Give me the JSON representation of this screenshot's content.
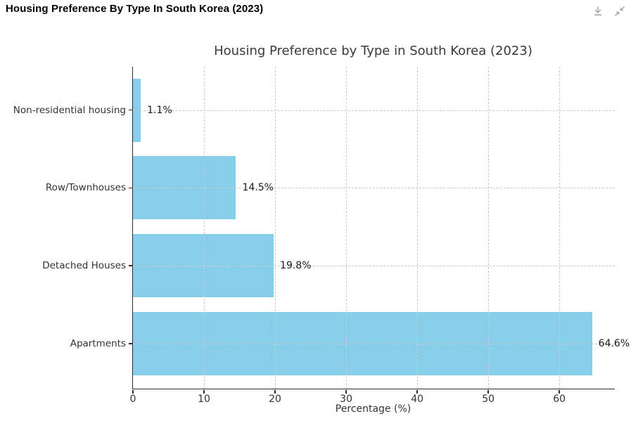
{
  "window": {
    "title": "Housing Preference By Type In South Korea (2023)",
    "actions": [
      {
        "name": "download-icon",
        "label": "Download"
      },
      {
        "name": "collapse-icon",
        "label": "Collapse"
      }
    ],
    "icon_color": "#a8a8a8"
  },
  "chart_data": {
    "type": "bar",
    "orientation": "horizontal",
    "title": "Housing Preference by Type in South Korea (2023)",
    "categories": [
      "Non-residential housing",
      "Row/Townhouses",
      "Detached Houses",
      "Apartments"
    ],
    "values": [
      1.1,
      14.5,
      19.8,
      64.6
    ],
    "value_labels": [
      "1.1%",
      "14.5%",
      "19.8%",
      "64.6%"
    ],
    "xlabel": "Percentage (%)",
    "ylabel": "",
    "xticks": [
      0,
      10,
      20,
      30,
      40,
      50,
      60
    ],
    "xlim": [
      0,
      67.8
    ],
    "grid": true,
    "legend": false,
    "bar_color": "#87CEEB",
    "grid_color": "#cbcbcb",
    "axis_color": "#2f2f2f",
    "title_color": "#3a3a3a",
    "tick_label_color": "#333333",
    "value_label_color": "#1a1a1a"
  }
}
